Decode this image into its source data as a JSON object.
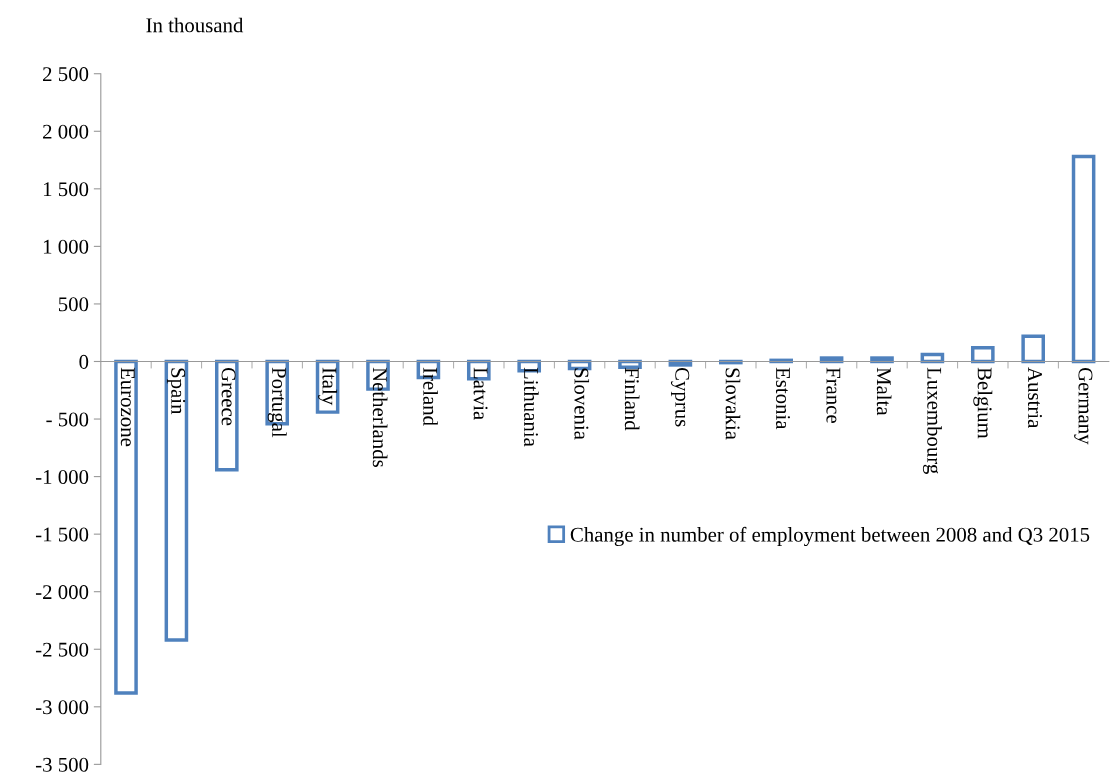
{
  "chart_data": {
    "type": "bar",
    "ylabel": "In thousand",
    "categories": [
      "Eurozone",
      "Spain",
      "Greece",
      "Portugal",
      "Italy",
      "Netherlands",
      "Ireland",
      "Latvia",
      "Lithuania",
      "Slovenia",
      "Finland",
      "Cyprus",
      "Slovakia",
      "Estonia",
      "France",
      "Malta",
      "Luxembourg",
      "Belgium",
      "Austria",
      "Germany"
    ],
    "series": [
      {
        "name": "Change in number of employment between 2008 and Q3 2015",
        "color": "#4f81bd",
        "values": [
          -2880,
          -2420,
          -940,
          -540,
          -440,
          -240,
          -140,
          -150,
          -80,
          -60,
          -50,
          -30,
          -10,
          10,
          30,
          30,
          60,
          120,
          220,
          1780
        ]
      }
    ],
    "ylim": [
      -3500,
      2500
    ],
    "yticks": [
      {
        "value": 2500,
        "label": "2 500"
      },
      {
        "value": 2000,
        "label": "2 000"
      },
      {
        "value": 1500,
        "label": "1 500"
      },
      {
        "value": 1000,
        "label": "1 000"
      },
      {
        "value": 500,
        "label": "500"
      },
      {
        "value": 0,
        "label": "0"
      },
      {
        "value": -500,
        "label": "- 500"
      },
      {
        "value": -1000,
        "label": "-1 000"
      },
      {
        "value": -1500,
        "label": "-1 500"
      },
      {
        "value": -2000,
        "label": "-2 000"
      },
      {
        "value": -2500,
        "label": "-2 500"
      },
      {
        "value": -3000,
        "label": "-3 000"
      },
      {
        "value": -3500,
        "label": "-3 500"
      }
    ],
    "grid": false,
    "legend": "right"
  }
}
